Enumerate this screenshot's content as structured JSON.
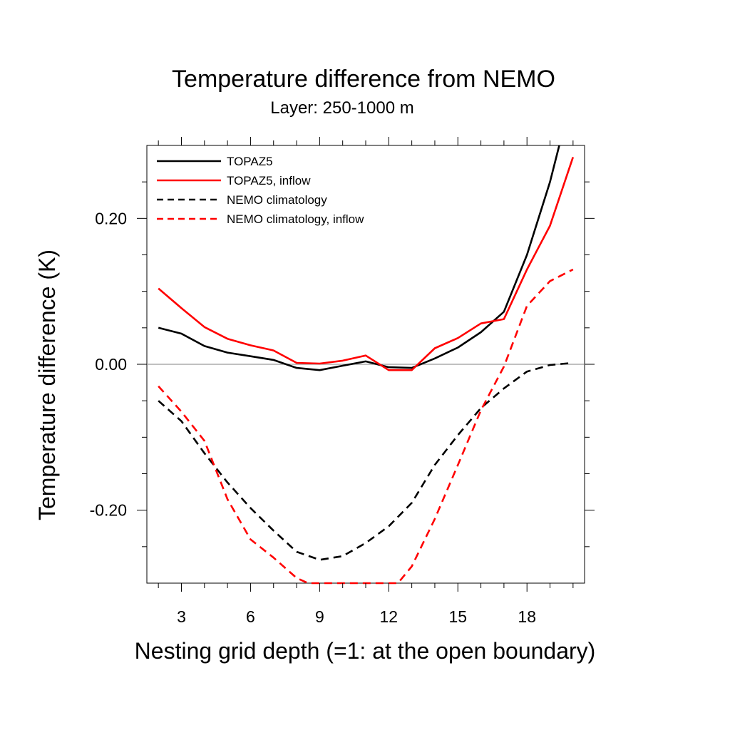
{
  "chart_data": {
    "type": "line",
    "title": "Temperature difference from NEMO",
    "subtitle": "Layer: 250-1000 m",
    "xlabel": "Nesting grid depth (=1: at the open boundary)",
    "ylabel": "Temperature difference (K)",
    "xlim": [
      1.5,
      20.5
    ],
    "ylim": [
      -0.3,
      0.3
    ],
    "x_ticks": [
      3,
      6,
      9,
      12,
      15,
      18
    ],
    "x_tick_labels": [
      "3",
      "6",
      "9",
      "12",
      "15",
      "18"
    ],
    "y_ticks": [
      -0.2,
      0.0,
      0.2
    ],
    "y_tick_labels": [
      "-0.20",
      "0.00",
      "0.20"
    ],
    "reference_line": 0.0,
    "grid": false,
    "legend_position": "top-left",
    "x": [
      2,
      3,
      4,
      5,
      6,
      7,
      8,
      9,
      10,
      11,
      12,
      13,
      14,
      15,
      16,
      17,
      18,
      19,
      20
    ],
    "series": [
      {
        "name": "TOPAZ5",
        "color": "#000000",
        "dash": "solid",
        "x": [
          2,
          3,
          4,
          5,
          6,
          7,
          8,
          9,
          10,
          11,
          12,
          13,
          14,
          15,
          16,
          17,
          18,
          19,
          19.4
        ],
        "values": [
          0.05,
          0.042,
          0.025,
          0.016,
          0.011,
          0.006,
          -0.005,
          -0.008,
          -0.002,
          0.004,
          -0.004,
          -0.005,
          0.008,
          0.023,
          0.044,
          0.072,
          0.15,
          0.25,
          0.3
        ]
      },
      {
        "name": "TOPAZ5, inflow",
        "color": "#ff0000",
        "dash": "solid",
        "x": [
          2,
          3,
          4,
          5,
          6,
          7,
          8,
          9,
          10,
          11,
          12,
          13,
          14,
          15,
          16,
          17,
          18,
          19,
          20
        ],
        "values": [
          0.104,
          0.077,
          0.051,
          0.035,
          0.026,
          0.019,
          0.002,
          0.001,
          0.005,
          0.012,
          -0.008,
          -0.008,
          0.022,
          0.036,
          0.056,
          0.062,
          0.13,
          0.19,
          0.284
        ]
      },
      {
        "name": "NEMO climatology",
        "color": "#000000",
        "dash": "dashed",
        "x": [
          2,
          3,
          4,
          5,
          6,
          7,
          8,
          9,
          10,
          11,
          12,
          13,
          14,
          15,
          16,
          17,
          18,
          19,
          20
        ],
        "values": [
          -0.05,
          -0.078,
          -0.122,
          -0.162,
          -0.197,
          -0.228,
          -0.257,
          -0.268,
          -0.263,
          -0.245,
          -0.222,
          -0.19,
          -0.138,
          -0.097,
          -0.06,
          -0.033,
          -0.01,
          -0.001,
          0.002
        ]
      },
      {
        "name": "NEMO climatology, inflow",
        "color": "#ff0000",
        "dash": "dashed",
        "x": [
          2,
          3,
          4,
          5,
          6,
          7,
          8,
          8.5,
          12.4,
          13,
          14,
          15,
          16,
          17,
          18,
          19,
          20
        ],
        "values": [
          -0.03,
          -0.065,
          -0.105,
          -0.185,
          -0.24,
          -0.265,
          -0.293,
          -0.3,
          -0.3,
          -0.277,
          -0.212,
          -0.138,
          -0.063,
          -0.003,
          0.08,
          0.114,
          0.13
        ]
      }
    ]
  }
}
